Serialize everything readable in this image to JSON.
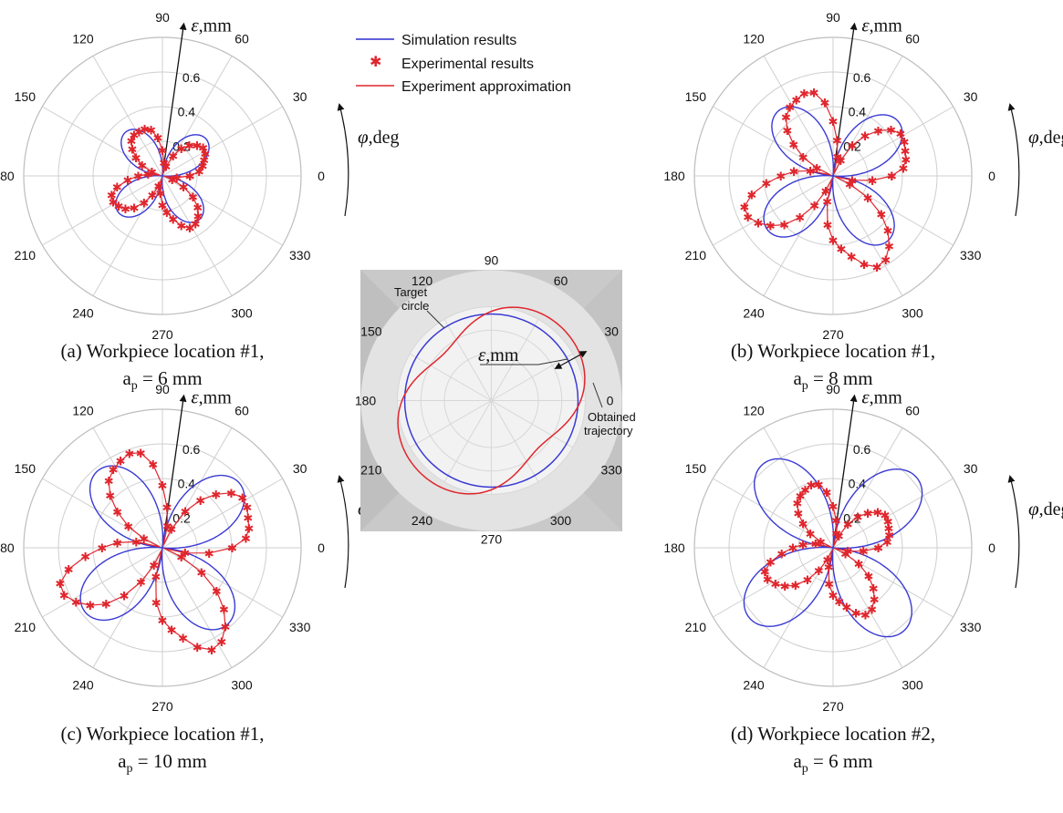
{
  "legend": [
    {
      "label": "Simulation results",
      "color": "#2b2bd0",
      "style": "line"
    },
    {
      "label": "Experimental results",
      "color": "#e0262d",
      "style": "marker"
    },
    {
      "label": "Experiment approximation",
      "color": "#e0262d",
      "style": "line"
    }
  ],
  "center_diagram": {
    "angle_labels": [
      "0",
      "30",
      "60",
      "90",
      "120",
      "150",
      "180",
      "210",
      "240",
      "270",
      "300",
      "330"
    ],
    "target_label_lines": [
      "Target",
      "circle"
    ],
    "obtained_label_lines": [
      "Obtained",
      "trajectory"
    ],
    "epsilon_label": "ε,mm"
  },
  "chart_data": [
    {
      "type": "polar",
      "caption_line1": "(a) Workpiece location #1,",
      "caption_line2_prefix": "a",
      "caption_line2_sub": "p",
      "caption_line2_suffix": " = 6 mm",
      "radial_axis_label": "ε,mm",
      "angular_axis_label": "φ,deg",
      "radial_ticks": [
        "0.2",
        "0.4",
        "0.6"
      ],
      "radial_max": 0.8,
      "angle_ticks": [
        0,
        30,
        60,
        90,
        120,
        150,
        180,
        210,
        240,
        270,
        300,
        330
      ],
      "angle_tick_labels": [
        "0",
        "30",
        "60",
        "90",
        "120",
        "150",
        "180",
        "210",
        "240",
        "270",
        "300",
        "330"
      ],
      "simulation": {
        "petals": 4,
        "phase_deg": 40,
        "amplitude": 0.33,
        "petal_amplitudes": [
          0.33,
          0.33,
          0.33,
          0.33
        ]
      },
      "experimental": {
        "petals": 4,
        "phase_deg": 30,
        "amplitude": 0.3,
        "petal_amplitudes": [
          0.29,
          0.3,
          0.31,
          0.33
        ],
        "marker_count": 52
      }
    },
    {
      "type": "polar",
      "caption_line1": "(b) Workpiece location #1,",
      "caption_line2_prefix": "a",
      "caption_line2_sub": "p",
      "caption_line2_suffix": " = 8 mm",
      "radial_axis_label": "ε,mm",
      "angular_axis_label": "φ,deg",
      "radial_ticks": [
        "0.2",
        "0.4",
        "0.6"
      ],
      "radial_max": 0.8,
      "angle_ticks": [
        0,
        30,
        60,
        90,
        120,
        150,
        180,
        210,
        240,
        270,
        300,
        330
      ],
      "angle_tick_labels": [
        "0",
        "30",
        "60",
        "90",
        "120",
        "150",
        "180",
        "210",
        "240",
        "270",
        "300",
        "330"
      ],
      "simulation": {
        "petals": 4,
        "phase_deg": 40,
        "amplitude": 0.49,
        "petal_amplitudes": [
          0.49,
          0.49,
          0.49,
          0.49
        ]
      },
      "experimental": {
        "petals": 4,
        "phase_deg": 25,
        "amplitude": 0.5,
        "petal_amplitudes": [
          0.48,
          0.5,
          0.52,
          0.57
        ],
        "marker_count": 56
      }
    },
    {
      "type": "polar",
      "caption_line1": "(c) Workpiece location #1,",
      "caption_line2_prefix": "a",
      "caption_line2_sub": "p",
      "caption_line2_suffix": " = 10 mm",
      "radial_axis_label": "ε,mm",
      "angular_axis_label": "φ,deg",
      "radial_ticks": [
        "0.2",
        "0.4",
        "0.6"
      ],
      "radial_max": 0.8,
      "angle_ticks": [
        0,
        30,
        60,
        90,
        120,
        150,
        180,
        210,
        240,
        270,
        300,
        330
      ],
      "angle_tick_labels": [
        "0",
        "30",
        "60",
        "90",
        "120",
        "150",
        "180",
        "210",
        "240",
        "270",
        "300",
        "330"
      ],
      "simulation": {
        "petals": 4,
        "phase_deg": 40,
        "amplitude": 0.58,
        "petal_amplitudes": [
          0.58,
          0.58,
          0.58,
          0.58
        ]
      },
      "experimental": {
        "petals": 4,
        "phase_deg": 25,
        "amplitude": 0.58,
        "petal_amplitudes": [
          0.57,
          0.57,
          0.6,
          0.64
        ],
        "marker_count": 56
      }
    },
    {
      "type": "polar",
      "caption_line1": "(d) Workpiece location #2,",
      "caption_line2_prefix": "a",
      "caption_line2_sub": "p",
      "caption_line2_suffix": " = 6 mm",
      "radial_axis_label": "ε,mm",
      "angular_axis_label": "φ,deg",
      "radial_ticks": [
        "0.2",
        "0.4",
        "0.6"
      ],
      "radial_max": 0.8,
      "angle_ticks": [
        0,
        30,
        60,
        90,
        120,
        150,
        180,
        210,
        240,
        270,
        300,
        330
      ],
      "angle_tick_labels": [
        "0",
        "30",
        "60",
        "90",
        "120",
        "150",
        "180",
        "210",
        "240",
        "270",
        "300",
        "330"
      ],
      "simulation": {
        "petals": 4,
        "phase_deg": 40,
        "amplitude": 0.63,
        "petal_amplitudes": [
          0.63,
          0.63,
          0.63,
          0.63
        ]
      },
      "experimental": {
        "petals": 4,
        "phase_deg": 25,
        "amplitude": 0.38,
        "petal_amplitudes": [
          0.37,
          0.38,
          0.4,
          0.42
        ],
        "marker_count": 56
      }
    }
  ]
}
